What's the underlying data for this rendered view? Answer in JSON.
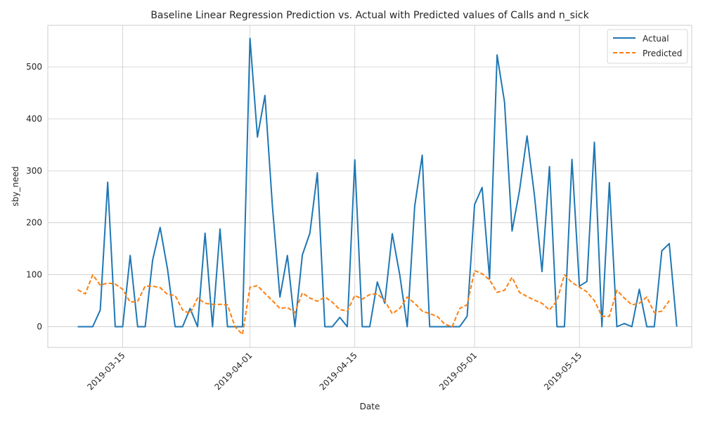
{
  "chart_data": {
    "type": "line",
    "title": "Baseline Linear Regression Prediction vs. Actual with Predicted values of Calls and n_sick",
    "xlabel": "Date",
    "ylabel": "sby_need",
    "x_start": "2019-03-09",
    "x_step_days": 1,
    "xlim": [
      "2019-03-05",
      "2019-05-30"
    ],
    "ylim": [
      -40,
      580
    ],
    "x_ticks": [
      "2019-03-15",
      "2019-04-01",
      "2019-04-15",
      "2019-05-01",
      "2019-05-15"
    ],
    "y_ticks": [
      0,
      100,
      200,
      300,
      400,
      500
    ],
    "grid": true,
    "legend": {
      "position": "top-right",
      "entries": [
        "Actual",
        "Predicted"
      ]
    },
    "series": [
      {
        "name": "Actual",
        "color": "#1f77b4",
        "style": "solid",
        "values": [
          0,
          0,
          0,
          32,
          278,
          0,
          0,
          137,
          0,
          0,
          128,
          191,
          110,
          0,
          0,
          35,
          0,
          180,
          0,
          188,
          0,
          0,
          0,
          555,
          365,
          445,
          232,
          57,
          137,
          0,
          138,
          180,
          296,
          0,
          0,
          18,
          0,
          321,
          0,
          0,
          86,
          45,
          179,
          100,
          0,
          232,
          330,
          0,
          0,
          0,
          0,
          0,
          20,
          235,
          268,
          92,
          523,
          432,
          184,
          262,
          367,
          252,
          106,
          308,
          0,
          0,
          322,
          78,
          87,
          355,
          0,
          277,
          0,
          6,
          0,
          72,
          0,
          0,
          146,
          160,
          0
        ]
      },
      {
        "name": "Predicted",
        "color": "#ff7f0e",
        "style": "dashed",
        "values": [
          71,
          63,
          100,
          80,
          84,
          82,
          72,
          47,
          49,
          78,
          78,
          75,
          62,
          60,
          32,
          25,
          55,
          45,
          43,
          43,
          42,
          0,
          -15,
          76,
          79,
          64,
          50,
          35,
          37,
          27,
          65,
          55,
          49,
          57,
          47,
          33,
          30,
          60,
          53,
          62,
          63,
          50,
          25,
          35,
          57,
          45,
          30,
          25,
          20,
          5,
          0,
          35,
          42,
          108,
          102,
          90,
          66,
          70,
          95,
          66,
          58,
          51,
          45,
          32,
          50,
          100,
          85,
          76,
          67,
          50,
          20,
          20,
          70,
          55,
          42,
          45,
          57,
          27,
          30,
          50
        ]
      }
    ]
  }
}
